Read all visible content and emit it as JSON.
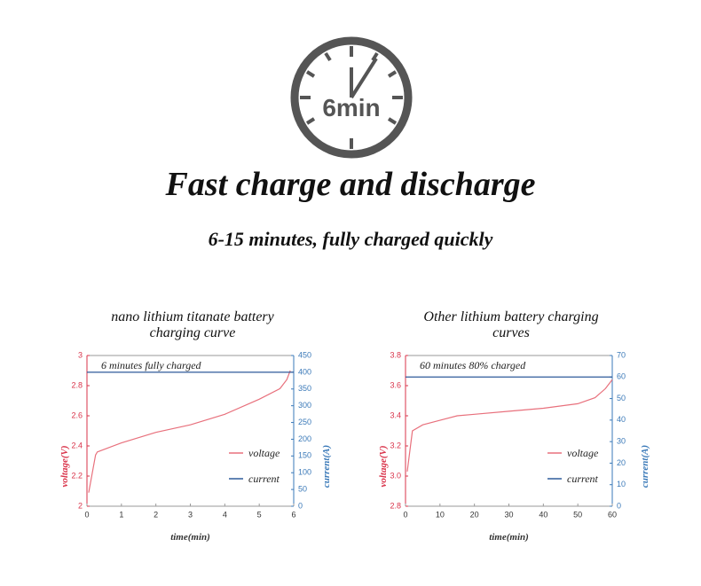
{
  "header": {
    "clock_label": "6min",
    "title": "Fast charge and discharge",
    "subtitle": "6-15 minutes, fully charged quickly"
  },
  "chart_data": [
    {
      "type": "line",
      "title": "nano lithium titanate battery charging curve",
      "annotation": "6 minutes fully charged",
      "x_label": "time(min)",
      "y_label": "voltage(V)",
      "y2_label": "current(A)",
      "xlim": [
        0,
        6
      ],
      "xticks": [
        0,
        1,
        2,
        3,
        4,
        5,
        6
      ],
      "ylim": [
        2,
        3
      ],
      "yticks": [
        2,
        2.2,
        2.4,
        2.6,
        2.8,
        3
      ],
      "y2lim": [
        0,
        450
      ],
      "y2ticks": [
        0,
        50,
        100,
        150,
        200,
        250,
        300,
        350,
        400,
        450
      ],
      "y_color": "#d9334a",
      "y2_color": "#3a79b8",
      "series": [
        {
          "name": "voltage",
          "color": "#e8707c",
          "x": [
            0.05,
            0.25,
            0.3,
            1,
            2,
            3,
            4,
            5,
            5.6,
            5.8,
            5.9
          ],
          "values": [
            2.09,
            2.34,
            2.36,
            2.42,
            2.49,
            2.54,
            2.61,
            2.71,
            2.78,
            2.84,
            2.9
          ]
        },
        {
          "name": "current",
          "color": "#2d5a9a",
          "axis": "y2",
          "x": [
            0,
            6
          ],
          "values": [
            400,
            400
          ]
        }
      ]
    },
    {
      "type": "line",
      "title": "Other lithium battery charging curves",
      "annotation": "60 minutes 80% charged",
      "x_label": "time(min)",
      "y_label": "voltage(V)",
      "y2_label": "current(A)",
      "xlim": [
        0,
        60
      ],
      "xticks": [
        0,
        10,
        20,
        30,
        40,
        50,
        60
      ],
      "ylim": [
        2.8,
        3.8
      ],
      "yticks": [
        2.8,
        {
          "value": 3,
          "label": "3.0"
        },
        3.2,
        3.4,
        3.6,
        3.8
      ],
      "y2lim": [
        0,
        70
      ],
      "y2ticks": [
        0,
        10,
        20,
        30,
        40,
        50,
        60,
        70
      ],
      "y_color": "#d9334a",
      "y2_color": "#3a79b8",
      "series": [
        {
          "name": "voltage",
          "color": "#e8707c",
          "x": [
            0.5,
            2,
            5,
            10,
            15,
            20,
            30,
            40,
            50,
            55,
            58,
            60
          ],
          "values": [
            3.03,
            3.3,
            3.34,
            3.37,
            3.4,
            3.41,
            3.43,
            3.45,
            3.48,
            3.52,
            3.58,
            3.64
          ]
        },
        {
          "name": "current",
          "color": "#2d5a9a",
          "axis": "y2",
          "x": [
            0,
            60
          ],
          "values": [
            60,
            60
          ]
        }
      ]
    }
  ]
}
